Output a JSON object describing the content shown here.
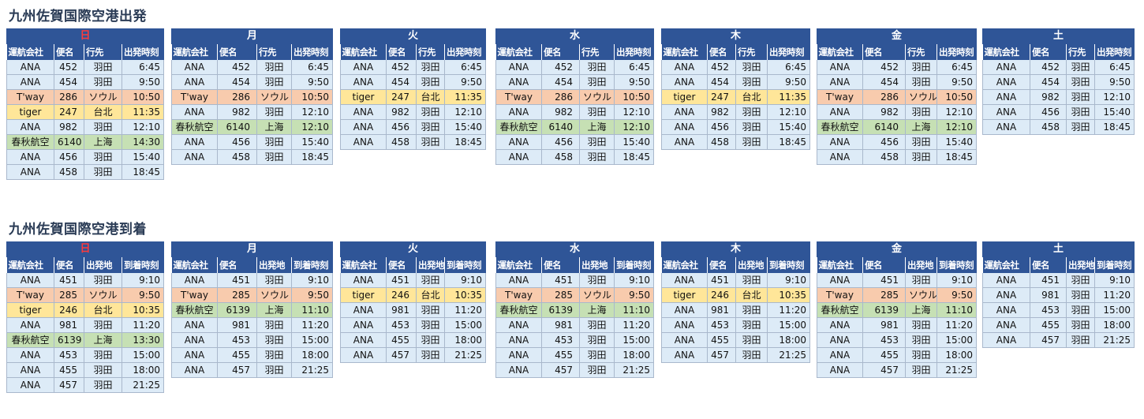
{
  "departures": {
    "title": "九州佐賀国際空港出発",
    "columns": [
      "運航会社",
      "便名",
      "行先",
      "出発時刻"
    ],
    "days": [
      {
        "label": "日",
        "sunday": true,
        "rows": [
          [
            "ANA",
            "452",
            "羽田",
            "6:45"
          ],
          [
            "ANA",
            "454",
            "羽田",
            "9:50"
          ],
          [
            "T'way",
            "286",
            "ソウル",
            "10:50"
          ],
          [
            "tiger",
            "247",
            "台北",
            "11:35"
          ],
          [
            "ANA",
            "982",
            "羽田",
            "12:10"
          ],
          [
            "春秋航空",
            "6140",
            "上海",
            "14:30"
          ],
          [
            "ANA",
            "456",
            "羽田",
            "15:40"
          ],
          [
            "ANA",
            "458",
            "羽田",
            "18:45"
          ]
        ]
      },
      {
        "label": "月",
        "rows": [
          [
            "ANA",
            "452",
            "羽田",
            "6:45"
          ],
          [
            "ANA",
            "454",
            "羽田",
            "9:50"
          ],
          [
            "T'way",
            "286",
            "ソウル",
            "10:50"
          ],
          [
            "ANA",
            "982",
            "羽田",
            "12:10"
          ],
          [
            "春秋航空",
            "6140",
            "上海",
            "12:10"
          ],
          [
            "ANA",
            "456",
            "羽田",
            "15:40"
          ],
          [
            "ANA",
            "458",
            "羽田",
            "18:45"
          ]
        ]
      },
      {
        "label": "火",
        "rows": [
          [
            "ANA",
            "452",
            "羽田",
            "6:45"
          ],
          [
            "ANA",
            "454",
            "羽田",
            "9:50"
          ],
          [
            "tiger",
            "247",
            "台北",
            "11:35"
          ],
          [
            "ANA",
            "982",
            "羽田",
            "12:10"
          ],
          [
            "ANA",
            "456",
            "羽田",
            "15:40"
          ],
          [
            "ANA",
            "458",
            "羽田",
            "18:45"
          ]
        ]
      },
      {
        "label": "水",
        "rows": [
          [
            "ANA",
            "452",
            "羽田",
            "6:45"
          ],
          [
            "ANA",
            "454",
            "羽田",
            "9:50"
          ],
          [
            "T'way",
            "286",
            "ソウル",
            "10:50"
          ],
          [
            "ANA",
            "982",
            "羽田",
            "12:10"
          ],
          [
            "春秋航空",
            "6140",
            "上海",
            "12:10"
          ],
          [
            "ANA",
            "456",
            "羽田",
            "15:40"
          ],
          [
            "ANA",
            "458",
            "羽田",
            "18:45"
          ]
        ]
      },
      {
        "label": "木",
        "rows": [
          [
            "ANA",
            "452",
            "羽田",
            "6:45"
          ],
          [
            "ANA",
            "454",
            "羽田",
            "9:50"
          ],
          [
            "tiger",
            "247",
            "台北",
            "11:35"
          ],
          [
            "ANA",
            "982",
            "羽田",
            "12:10"
          ],
          [
            "ANA",
            "456",
            "羽田",
            "15:40"
          ],
          [
            "ANA",
            "458",
            "羽田",
            "18:45"
          ]
        ]
      },
      {
        "label": "金",
        "rows": [
          [
            "ANA",
            "452",
            "羽田",
            "6:45"
          ],
          [
            "ANA",
            "454",
            "羽田",
            "9:50"
          ],
          [
            "T'way",
            "286",
            "ソウル",
            "10:50"
          ],
          [
            "ANA",
            "982",
            "羽田",
            "12:10"
          ],
          [
            "春秋航空",
            "6140",
            "上海",
            "12:10"
          ],
          [
            "ANA",
            "456",
            "羽田",
            "15:40"
          ],
          [
            "ANA",
            "458",
            "羽田",
            "18:45"
          ]
        ]
      },
      {
        "label": "土",
        "rows": [
          [
            "ANA",
            "452",
            "羽田",
            "6:45"
          ],
          [
            "ANA",
            "454",
            "羽田",
            "9:50"
          ],
          [
            "ANA",
            "982",
            "羽田",
            "12:10"
          ],
          [
            "ANA",
            "456",
            "羽田",
            "15:40"
          ],
          [
            "ANA",
            "458",
            "羽田",
            "18:45"
          ]
        ]
      }
    ]
  },
  "arrivals": {
    "title": "九州佐賀国際空港到着",
    "columns": [
      "運航会社",
      "便名",
      "出発地",
      "到着時刻"
    ],
    "days": [
      {
        "label": "日",
        "sunday": true,
        "rows": [
          [
            "ANA",
            "451",
            "羽田",
            "9:10"
          ],
          [
            "T'way",
            "285",
            "ソウル",
            "9:50"
          ],
          [
            "tiger",
            "246",
            "台北",
            "10:35"
          ],
          [
            "ANA",
            "981",
            "羽田",
            "11:20"
          ],
          [
            "春秋航空",
            "6139",
            "上海",
            "13:30"
          ],
          [
            "ANA",
            "453",
            "羽田",
            "15:00"
          ],
          [
            "ANA",
            "455",
            "羽田",
            "18:00"
          ],
          [
            "ANA",
            "457",
            "羽田",
            "21:25"
          ]
        ]
      },
      {
        "label": "月",
        "rows": [
          [
            "ANA",
            "451",
            "羽田",
            "9:10"
          ],
          [
            "T'way",
            "285",
            "ソウル",
            "9:50"
          ],
          [
            "春秋航空",
            "6139",
            "上海",
            "11:10"
          ],
          [
            "ANA",
            "981",
            "羽田",
            "11:20"
          ],
          [
            "ANA",
            "453",
            "羽田",
            "15:00"
          ],
          [
            "ANA",
            "455",
            "羽田",
            "18:00"
          ],
          [
            "ANA",
            "457",
            "羽田",
            "21:25"
          ]
        ]
      },
      {
        "label": "火",
        "rows": [
          [
            "ANA",
            "451",
            "羽田",
            "9:10"
          ],
          [
            "tiger",
            "246",
            "台北",
            "10:35"
          ],
          [
            "ANA",
            "981",
            "羽田",
            "11:20"
          ],
          [
            "ANA",
            "453",
            "羽田",
            "15:00"
          ],
          [
            "ANA",
            "455",
            "羽田",
            "18:00"
          ],
          [
            "ANA",
            "457",
            "羽田",
            "21:25"
          ]
        ]
      },
      {
        "label": "水",
        "rows": [
          [
            "ANA",
            "451",
            "羽田",
            "9:10"
          ],
          [
            "T'way",
            "285",
            "ソウル",
            "9:50"
          ],
          [
            "春秋航空",
            "6139",
            "上海",
            "11:10"
          ],
          [
            "ANA",
            "981",
            "羽田",
            "11:20"
          ],
          [
            "ANA",
            "453",
            "羽田",
            "15:00"
          ],
          [
            "ANA",
            "455",
            "羽田",
            "18:00"
          ],
          [
            "ANA",
            "457",
            "羽田",
            "21:25"
          ]
        ]
      },
      {
        "label": "木",
        "rows": [
          [
            "ANA",
            "451",
            "羽田",
            "9:10"
          ],
          [
            "tiger",
            "246",
            "台北",
            "10:35"
          ],
          [
            "ANA",
            "981",
            "羽田",
            "11:20"
          ],
          [
            "ANA",
            "453",
            "羽田",
            "15:00"
          ],
          [
            "ANA",
            "455",
            "羽田",
            "18:00"
          ],
          [
            "ANA",
            "457",
            "羽田",
            "21:25"
          ]
        ]
      },
      {
        "label": "金",
        "rows": [
          [
            "ANA",
            "451",
            "羽田",
            "9:10"
          ],
          [
            "T'way",
            "285",
            "ソウル",
            "9:50"
          ],
          [
            "春秋航空",
            "6139",
            "上海",
            "11:10"
          ],
          [
            "ANA",
            "981",
            "羽田",
            "11:20"
          ],
          [
            "ANA",
            "453",
            "羽田",
            "15:00"
          ],
          [
            "ANA",
            "455",
            "羽田",
            "18:00"
          ],
          [
            "ANA",
            "457",
            "羽田",
            "21:25"
          ]
        ]
      },
      {
        "label": "土",
        "rows": [
          [
            "ANA",
            "451",
            "羽田",
            "9:10"
          ],
          [
            "ANA",
            "981",
            "羽田",
            "11:20"
          ],
          [
            "ANA",
            "453",
            "羽田",
            "15:00"
          ],
          [
            "ANA",
            "455",
            "羽田",
            "18:00"
          ],
          [
            "ANA",
            "457",
            "羽田",
            "21:25"
          ]
        ]
      }
    ]
  },
  "airline_colors": {
    "T'way": "#f8cbad",
    "tiger": "#ffe699",
    "春秋航空": "#c6e0b4",
    "ANA": "#ddebf7"
  },
  "header_color": "#2f5597",
  "sunday_color": "#ff3b3b"
}
